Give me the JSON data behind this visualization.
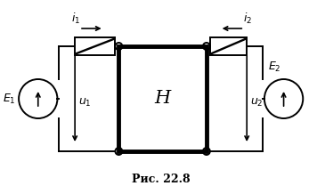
{
  "title": "Рис. 22.8",
  "bg_color": "#ffffff",
  "line_color": "#000000",
  "H_label": "H",
  "E1_label": "E_1",
  "E2_label": "E_2",
  "u1_label": "u_1",
  "u2_label": "u_2",
  "i1_label": "i_1",
  "i2_label": "i_2"
}
